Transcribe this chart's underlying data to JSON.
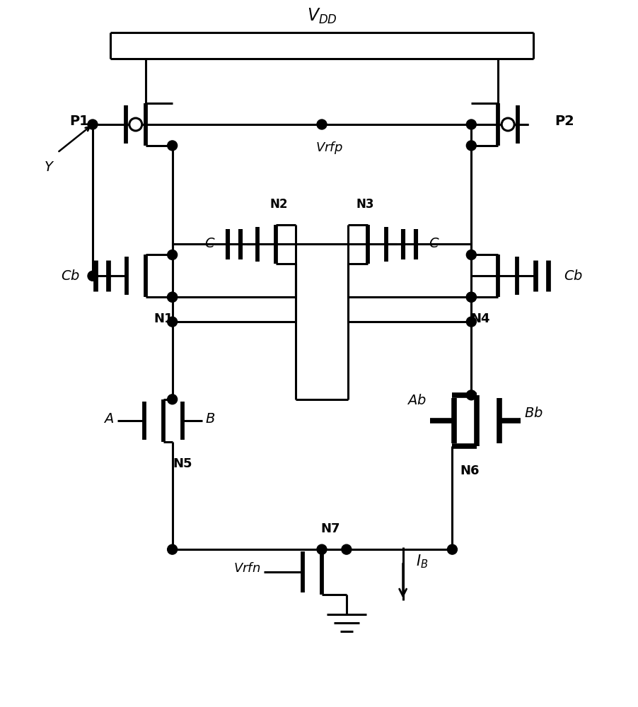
{
  "figsize": [
    9.03,
    10.0
  ],
  "dpi": 100,
  "bg_color": "#ffffff",
  "lc": "#000000",
  "lw": 2.2,
  "tlw": 5.5,
  "vdd_label": "V$_{DD}$",
  "vrfp_label": "Vrfp",
  "vrfn_label": "Vrfn",
  "ib_label": "I$_B$"
}
